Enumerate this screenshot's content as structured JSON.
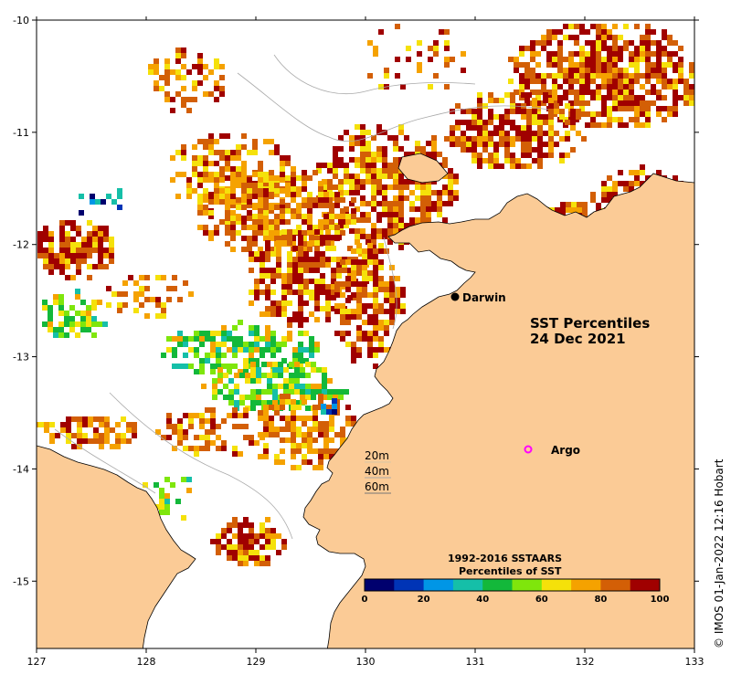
{
  "map": {
    "title_line1": "SST Percentiles",
    "title_line2": "24 Dec 2021",
    "x_ticks": [
      "127",
      "128",
      "129",
      "130",
      "131",
      "132",
      "133"
    ],
    "y_ticks": [
      "-10",
      "-11",
      "-12",
      "-13",
      "-14",
      "-15"
    ],
    "lon_range": [
      127,
      133
    ],
    "lat_range": [
      -10,
      -15.6
    ],
    "land_color": "#fbcb96",
    "colors": {
      "p0": "#00006e",
      "p10": "#0034b6",
      "p20": "#0096e6",
      "p30": "#15bfa8",
      "p40": "#13b83a",
      "p50": "#7fe60c",
      "p60": "#f5e10a",
      "p70": "#f5a200",
      "p80": "#d35f06",
      "p90": "#a00000"
    }
  },
  "places": {
    "darwin": "Darwin",
    "argo": "Argo"
  },
  "depth_legend": [
    "20m",
    "40m",
    "60m"
  ],
  "colorbar": {
    "title_line1": "1992-2016 SSTAARS",
    "title_line2": "Percentiles of SST",
    "ticks": [
      "0",
      "20",
      "40",
      "60",
      "80",
      "100"
    ]
  },
  "credit": "© IMOS 01-Jan-2022 12:16 Hobart"
}
